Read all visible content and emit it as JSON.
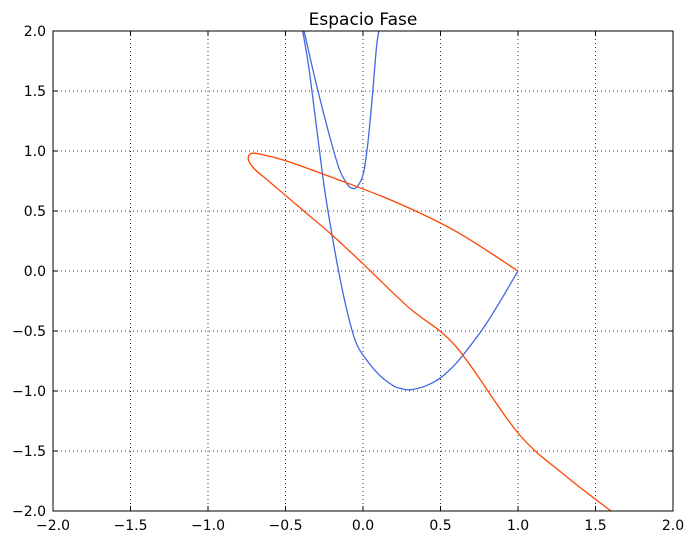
{
  "chart_data": {
    "type": "line",
    "title": "Espacio Fase",
    "xlabel": "",
    "ylabel": "",
    "xlim": [
      -2.0,
      2.0
    ],
    "ylim": [
      -2.0,
      2.0
    ],
    "grid": true,
    "x_ticks": [
      "−2.0",
      "−1.5",
      "−1.0",
      "−0.5",
      "0.0",
      "0.5",
      "1.0",
      "1.5",
      "2.0"
    ],
    "y_ticks": [
      "−2.0",
      "−1.5",
      "−1.0",
      "−0.5",
      "0.0",
      "0.5",
      "1.0",
      "1.5",
      "2.0"
    ],
    "series": [
      {
        "color": "#4169e1",
        "x": [
          1.0,
          0.9,
          0.8,
          0.7,
          0.6,
          0.5,
          0.4,
          0.3,
          0.25,
          0.2,
          0.1,
          0.0,
          -0.05,
          -0.1,
          -0.15,
          -0.2,
          -0.25,
          -0.3,
          -0.35,
          -0.4,
          -0.3,
          -0.2,
          -0.15,
          -0.1,
          -0.07,
          -0.04,
          0.0,
          0.03,
          0.06,
          0.09,
          0.12
        ],
        "y": [
          0.0,
          -0.22,
          -0.43,
          -0.61,
          -0.77,
          -0.89,
          -0.96,
          -0.99,
          -0.98,
          -0.96,
          -0.86,
          -0.7,
          -0.58,
          -0.35,
          -0.05,
          0.3,
          0.7,
          1.2,
          1.7,
          2.1,
          1.55,
          1.05,
          0.84,
          0.72,
          0.69,
          0.7,
          0.8,
          1.05,
          1.45,
          1.9,
          2.1
        ]
      },
      {
        "color": "#ff4500",
        "x": [
          1.0,
          0.6,
          0.2,
          -0.2,
          -0.5,
          -0.65,
          -0.72,
          -0.74,
          -0.7,
          -0.6,
          -0.4,
          -0.2,
          0.0,
          0.3,
          0.6,
          1.0,
          1.3,
          1.6
        ],
        "y": [
          0.0,
          0.33,
          0.58,
          0.78,
          0.92,
          0.97,
          0.98,
          0.93,
          0.85,
          0.74,
          0.52,
          0.3,
          0.06,
          -0.31,
          -0.63,
          -1.35,
          -1.7,
          -2.0
        ]
      }
    ]
  }
}
